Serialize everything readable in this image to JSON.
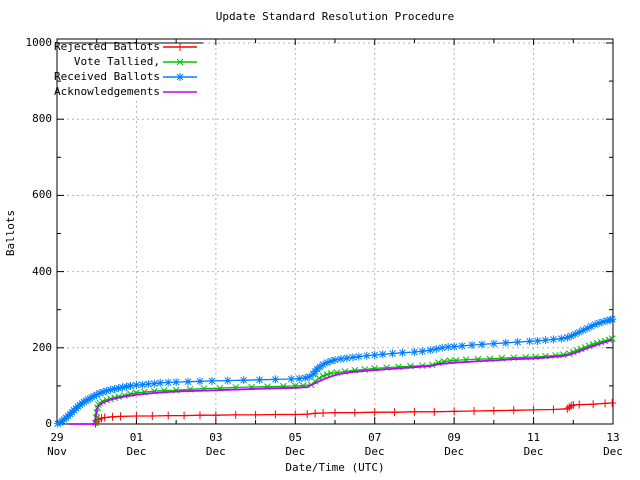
{
  "title": "Update Standard Resolution Procedure",
  "axes": {
    "x_label": "Date/Time (UTC)",
    "y_label": "Ballots",
    "y_ticks": [
      {
        "label": "0",
        "value": 0
      },
      {
        "label": "200",
        "value": 200
      },
      {
        "label": "400",
        "value": 400
      },
      {
        "label": "600",
        "value": 600
      },
      {
        "label": "800",
        "value": 800
      },
      {
        "label": "1000",
        "value": 1000
      }
    ],
    "y_minor_ticks": [
      100,
      300,
      500,
      700,
      900
    ],
    "x_ticks": [
      {
        "line1": "29",
        "line2": "Nov",
        "t": 0
      },
      {
        "line1": "01",
        "line2": "Dec",
        "t": 2
      },
      {
        "line1": "03",
        "line2": "Dec",
        "t": 4
      },
      {
        "line1": "05",
        "line2": "Dec",
        "t": 6
      },
      {
        "line1": "07",
        "line2": "Dec",
        "t": 8
      },
      {
        "line1": "09",
        "line2": "Dec",
        "t": 10
      },
      {
        "line1": "11",
        "line2": "Dec",
        "t": 12
      },
      {
        "line1": "13",
        "line2": "Dec",
        "t": 14
      }
    ],
    "x_minor_ticks": [
      1,
      3,
      5,
      7,
      9,
      11,
      13
    ]
  },
  "colors": {
    "background": "#ffffff",
    "frame": "#000000",
    "grid": "#b4b4b4",
    "rejected": "#ff0000",
    "tallied": "#00c000",
    "received": "#0080ff",
    "acknowledgements": "#c000ff"
  },
  "chart_data": {
    "type": "line",
    "title": "Update Standard Resolution Procedure",
    "xlabel": "Date/Time (UTC)",
    "ylabel": "Ballots",
    "ylim": [
      0,
      1000
    ],
    "xlim_days_from_29_nov": [
      0,
      14
    ],
    "grid": true,
    "legend_position": "top-left",
    "series": [
      {
        "name": "Rejected Ballots",
        "color": "#ff0000",
        "marker": "plus",
        "points": [
          [
            0.97,
            1
          ],
          [
            1.0,
            6
          ],
          [
            1.05,
            11
          ],
          [
            1.12,
            15
          ],
          [
            1.2,
            17
          ],
          [
            1.4,
            19
          ],
          [
            1.6,
            20
          ],
          [
            2.0,
            21
          ],
          [
            2.4,
            21
          ],
          [
            2.8,
            22
          ],
          [
            3.2,
            22
          ],
          [
            3.6,
            23
          ],
          [
            4.0,
            23
          ],
          [
            4.5,
            24
          ],
          [
            5.0,
            24
          ],
          [
            5.5,
            25
          ],
          [
            6.0,
            25
          ],
          [
            6.3,
            26
          ],
          [
            6.5,
            28
          ],
          [
            6.7,
            29
          ],
          [
            7.0,
            30
          ],
          [
            7.5,
            30
          ],
          [
            8.0,
            31
          ],
          [
            8.5,
            31
          ],
          [
            9.0,
            32
          ],
          [
            9.5,
            32
          ],
          [
            10.0,
            33
          ],
          [
            10.5,
            34
          ],
          [
            11.0,
            35
          ],
          [
            11.5,
            36
          ],
          [
            12.0,
            37
          ],
          [
            12.5,
            38
          ],
          [
            12.85,
            40
          ],
          [
            12.9,
            44
          ],
          [
            12.95,
            48
          ],
          [
            13.0,
            50
          ],
          [
            13.15,
            51
          ],
          [
            13.5,
            52
          ],
          [
            13.8,
            54
          ],
          [
            13.98,
            55
          ]
        ]
      },
      {
        "name": "Vote Tallied,",
        "color": "#00c000",
        "marker": "cross",
        "points": [
          [
            0.97,
            3
          ],
          [
            0.99,
            16
          ],
          [
            1.0,
            30
          ],
          [
            1.02,
            43
          ],
          [
            1.04,
            51
          ],
          [
            1.08,
            55
          ],
          [
            1.15,
            59
          ],
          [
            1.25,
            63
          ],
          [
            1.35,
            66
          ],
          [
            1.45,
            69
          ],
          [
            1.55,
            72
          ],
          [
            1.7,
            75
          ],
          [
            1.85,
            79
          ],
          [
            2.0,
            82
          ],
          [
            2.2,
            84
          ],
          [
            2.45,
            86
          ],
          [
            2.7,
            88
          ],
          [
            3.0,
            89
          ],
          [
            3.35,
            91
          ],
          [
            3.7,
            93
          ],
          [
            4.1,
            94
          ],
          [
            4.5,
            96
          ],
          [
            4.9,
            97
          ],
          [
            5.3,
            98
          ],
          [
            5.7,
            99
          ],
          [
            6.0,
            100
          ],
          [
            6.2,
            101
          ],
          [
            6.4,
            103
          ],
          [
            6.5,
            112
          ],
          [
            6.6,
            120
          ],
          [
            6.7,
            126
          ],
          [
            6.8,
            130
          ],
          [
            6.9,
            133
          ],
          [
            7.05,
            135
          ],
          [
            7.25,
            138
          ],
          [
            7.5,
            141
          ],
          [
            7.75,
            143
          ],
          [
            8.0,
            146
          ],
          [
            8.3,
            148
          ],
          [
            8.6,
            150
          ],
          [
            8.9,
            152
          ],
          [
            9.2,
            153
          ],
          [
            9.45,
            155
          ],
          [
            9.6,
            161
          ],
          [
            9.75,
            164
          ],
          [
            9.9,
            166
          ],
          [
            10.05,
            167
          ],
          [
            10.3,
            169
          ],
          [
            10.6,
            170
          ],
          [
            10.9,
            171
          ],
          [
            11.2,
            173
          ],
          [
            11.5,
            174
          ],
          [
            11.8,
            175
          ],
          [
            12.05,
            176
          ],
          [
            12.3,
            178
          ],
          [
            12.55,
            180
          ],
          [
            12.75,
            182
          ],
          [
            12.9,
            185
          ],
          [
            13.0,
            189
          ],
          [
            13.1,
            193
          ],
          [
            13.2,
            197
          ],
          [
            13.3,
            201
          ],
          [
            13.4,
            205
          ],
          [
            13.5,
            209
          ],
          [
            13.6,
            212
          ],
          [
            13.7,
            215
          ],
          [
            13.8,
            218
          ],
          [
            13.9,
            221
          ],
          [
            13.98,
            224
          ]
        ]
      },
      {
        "name": "Received Ballots",
        "color": "#0080ff",
        "marker": "asterisk",
        "points": [
          [
            0.02,
            1
          ],
          [
            0.08,
            4
          ],
          [
            0.13,
            8
          ],
          [
            0.18,
            12
          ],
          [
            0.23,
            16
          ],
          [
            0.28,
            21
          ],
          [
            0.33,
            26
          ],
          [
            0.38,
            31
          ],
          [
            0.43,
            36
          ],
          [
            0.48,
            41
          ],
          [
            0.53,
            46
          ],
          [
            0.58,
            50
          ],
          [
            0.63,
            54
          ],
          [
            0.68,
            58
          ],
          [
            0.73,
            61
          ],
          [
            0.78,
            64
          ],
          [
            0.83,
            67
          ],
          [
            0.88,
            70
          ],
          [
            0.93,
            73
          ],
          [
            1.0,
            77
          ],
          [
            1.08,
            81
          ],
          [
            1.16,
            84
          ],
          [
            1.25,
            87
          ],
          [
            1.35,
            90
          ],
          [
            1.45,
            92
          ],
          [
            1.55,
            94
          ],
          [
            1.65,
            96
          ],
          [
            1.75,
            98
          ],
          [
            1.85,
            100
          ],
          [
            2.0,
            102
          ],
          [
            2.15,
            103
          ],
          [
            2.3,
            105
          ],
          [
            2.45,
            106
          ],
          [
            2.6,
            108
          ],
          [
            2.8,
            109
          ],
          [
            3.0,
            110
          ],
          [
            3.3,
            111
          ],
          [
            3.6,
            112
          ],
          [
            3.9,
            113
          ],
          [
            4.3,
            114
          ],
          [
            4.7,
            115
          ],
          [
            5.1,
            116
          ],
          [
            5.5,
            117
          ],
          [
            5.9,
            118
          ],
          [
            6.1,
            119
          ],
          [
            6.25,
            121
          ],
          [
            6.35,
            124
          ],
          [
            6.45,
            131
          ],
          [
            6.5,
            138
          ],
          [
            6.55,
            144
          ],
          [
            6.62,
            150
          ],
          [
            6.7,
            156
          ],
          [
            6.8,
            161
          ],
          [
            6.9,
            165
          ],
          [
            7.0,
            168
          ],
          [
            7.15,
            171
          ],
          [
            7.3,
            173
          ],
          [
            7.45,
            175
          ],
          [
            7.6,
            177
          ],
          [
            7.8,
            179
          ],
          [
            8.0,
            181
          ],
          [
            8.2,
            183
          ],
          [
            8.45,
            185
          ],
          [
            8.7,
            187
          ],
          [
            9.0,
            189
          ],
          [
            9.2,
            191
          ],
          [
            9.4,
            194
          ],
          [
            9.55,
            197
          ],
          [
            9.7,
            200
          ],
          [
            9.85,
            202
          ],
          [
            10.0,
            203
          ],
          [
            10.2,
            205
          ],
          [
            10.45,
            207
          ],
          [
            10.7,
            209
          ],
          [
            11.0,
            211
          ],
          [
            11.3,
            213
          ],
          [
            11.6,
            215
          ],
          [
            11.9,
            217
          ],
          [
            12.1,
            218
          ],
          [
            12.3,
            220
          ],
          [
            12.5,
            222
          ],
          [
            12.7,
            224
          ],
          [
            12.85,
            227
          ],
          [
            12.95,
            231
          ],
          [
            13.05,
            236
          ],
          [
            13.15,
            241
          ],
          [
            13.25,
            246
          ],
          [
            13.35,
            251
          ],
          [
            13.45,
            256
          ],
          [
            13.55,
            261
          ],
          [
            13.65,
            265
          ],
          [
            13.75,
            268
          ],
          [
            13.85,
            271
          ],
          [
            13.93,
            273
          ],
          [
            13.98,
            275
          ]
        ]
      },
      {
        "name": "Acknowledgements",
        "color": "#c000ff",
        "marker": "none",
        "points": [
          [
            0.3,
            0
          ],
          [
            0.95,
            0
          ],
          [
            0.97,
            18
          ],
          [
            1.0,
            38
          ],
          [
            1.05,
            48
          ],
          [
            1.12,
            54
          ],
          [
            1.22,
            59
          ],
          [
            1.35,
            64
          ],
          [
            1.5,
            68
          ],
          [
            1.7,
            72
          ],
          [
            2.0,
            77
          ],
          [
            2.4,
            81
          ],
          [
            2.8,
            84
          ],
          [
            3.2,
            86
          ],
          [
            3.8,
            88
          ],
          [
            4.4,
            90
          ],
          [
            5.0,
            92
          ],
          [
            5.6,
            94
          ],
          [
            6.0,
            95
          ],
          [
            6.3,
            97
          ],
          [
            6.5,
            107
          ],
          [
            6.7,
            117
          ],
          [
            6.9,
            125
          ],
          [
            7.1,
            131
          ],
          [
            7.4,
            136
          ],
          [
            7.8,
            140
          ],
          [
            8.2,
            143
          ],
          [
            8.6,
            146
          ],
          [
            9.0,
            149
          ],
          [
            9.4,
            152
          ],
          [
            9.6,
            157
          ],
          [
            10.0,
            161
          ],
          [
            10.5,
            164
          ],
          [
            11.0,
            167
          ],
          [
            11.5,
            170
          ],
          [
            12.0,
            172
          ],
          [
            12.4,
            175
          ],
          [
            12.7,
            178
          ],
          [
            12.9,
            182
          ],
          [
            13.05,
            187
          ],
          [
            13.2,
            193
          ],
          [
            13.4,
            201
          ],
          [
            13.6,
            208
          ],
          [
            13.8,
            215
          ],
          [
            13.98,
            221
          ]
        ]
      }
    ]
  }
}
